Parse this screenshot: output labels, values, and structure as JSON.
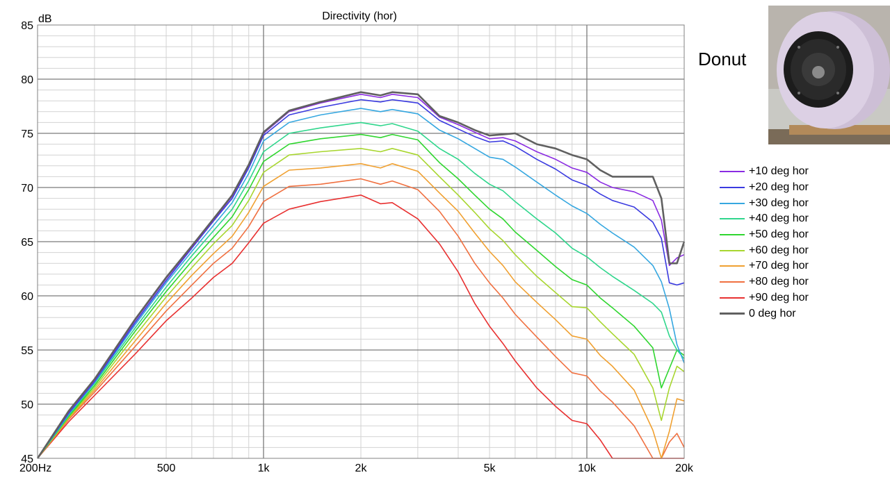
{
  "side_label": "Donut",
  "photo": {
    "icon": "speaker-photo-icon",
    "colors": {
      "body": "#d8cbe0",
      "driver": "#1b1b1b",
      "stand": "#b28a5a",
      "background": "#c9c9c4"
    }
  },
  "chart_data": {
    "type": "line",
    "title": "Directivity (hor)",
    "ylabel": "dB",
    "xlabel": "",
    "xscale": "log",
    "xlim": [
      200,
      20000
    ],
    "ylim": [
      45,
      85
    ],
    "grid": true,
    "legend_position": "right",
    "x_ticks": [
      {
        "value": 200,
        "label": "200Hz"
      },
      {
        "value": 500,
        "label": "500"
      },
      {
        "value": 1000,
        "label": "1k"
      },
      {
        "value": 2000,
        "label": "2k"
      },
      {
        "value": 5000,
        "label": "5k"
      },
      {
        "value": 10000,
        "label": "10k"
      },
      {
        "value": 20000,
        "label": "20k"
      }
    ],
    "y_ticks": [
      {
        "value": 85,
        "label": "85"
      },
      {
        "value": 80,
        "label": "80"
      },
      {
        "value": 75,
        "label": "75"
      },
      {
        "value": 70,
        "label": "70"
      },
      {
        "value": 65,
        "label": "65"
      },
      {
        "value": 60,
        "label": "60"
      },
      {
        "value": 55,
        "label": "55"
      },
      {
        "value": 50,
        "label": "50"
      },
      {
        "value": 45,
        "label": "45"
      }
    ],
    "x": [
      200,
      250,
      300,
      400,
      500,
      600,
      700,
      800,
      900,
      1000,
      1200,
      1500,
      2000,
      2300,
      2500,
      3000,
      3500,
      4000,
      4500,
      5000,
      5500,
      6000,
      7000,
      8000,
      9000,
      10000,
      11000,
      12000,
      14000,
      16000,
      17000,
      18000,
      19000,
      20000
    ],
    "series": [
      {
        "name": "+10 deg hor",
        "color": "#8a2be2",
        "values": [
          45,
          49.3,
          52.2,
          57.7,
          61.6,
          64.5,
          67,
          69.2,
          72,
          75,
          77,
          77.8,
          78.6,
          78.3,
          78.6,
          78.3,
          76.5,
          75.8,
          75.1,
          74.5,
          74.6,
          74.3,
          73.3,
          72.6,
          71.8,
          71.4,
          70.5,
          70,
          69.6,
          68.8,
          67,
          62.8,
          63.5,
          63.8
        ]
      },
      {
        "name": "+20 deg hor",
        "color": "#3a3ae0",
        "values": [
          45,
          49.2,
          52.1,
          57.5,
          61.4,
          64.4,
          66.9,
          69,
          71.8,
          74.8,
          76.7,
          77.4,
          78.1,
          77.9,
          78.1,
          77.8,
          76.2,
          75.4,
          74.7,
          74.2,
          74.3,
          73.8,
          72.6,
          71.7,
          70.7,
          70.2,
          69.4,
          68.8,
          68.2,
          66.8,
          65.3,
          61.2,
          61,
          61.2
        ]
      },
      {
        "name": "+30 deg hor",
        "color": "#35a7e0",
        "values": [
          45,
          49.1,
          52,
          57.3,
          61.2,
          64.1,
          66.5,
          68.6,
          71.3,
          74.3,
          76,
          76.7,
          77.3,
          77,
          77.2,
          76.8,
          75.3,
          74.5,
          73.6,
          72.8,
          72.6,
          71.9,
          70.5,
          69.3,
          68.3,
          67.6,
          66.6,
          65.8,
          64.5,
          62.8,
          61.3,
          58.8,
          55.5,
          53.8
        ]
      },
      {
        "name": "+40 deg hor",
        "color": "#2fd68c",
        "values": [
          45,
          49,
          51.9,
          57,
          60.8,
          63.7,
          66,
          68,
          70.6,
          73.3,
          75,
          75.5,
          76,
          75.7,
          75.9,
          75.2,
          73.6,
          72.6,
          71.3,
          70.3,
          69.7,
          68.7,
          67.1,
          65.8,
          64.4,
          63.6,
          62.6,
          61.8,
          60.5,
          59.3,
          58.5,
          56.3,
          55,
          54.2
        ]
      },
      {
        "name": "+50 deg hor",
        "color": "#2fd62f",
        "values": [
          45,
          48.9,
          51.7,
          56.7,
          60.4,
          63.2,
          65.4,
          67.3,
          69.8,
          72.4,
          74,
          74.5,
          74.9,
          74.6,
          74.9,
          74.4,
          72.3,
          70.8,
          69.3,
          68,
          67.1,
          65.9,
          64.2,
          62.7,
          61.5,
          61,
          59.8,
          58.9,
          57.2,
          55.2,
          51.5,
          53.3,
          55,
          54.5
        ]
      },
      {
        "name": "+60 deg hor",
        "color": "#a8d62f",
        "values": [
          45,
          48.8,
          51.5,
          56.3,
          59.9,
          62.6,
          64.8,
          66.5,
          68.8,
          71.4,
          73,
          73.3,
          73.6,
          73.3,
          73.6,
          73,
          71,
          69.3,
          67.7,
          66.2,
          65.1,
          63.8,
          61.8,
          60.3,
          59,
          58.9,
          57.6,
          56.5,
          54.6,
          51.5,
          48.5,
          51.5,
          53.5,
          53
        ]
      },
      {
        "name": "+70 deg hor",
        "color": "#f0a030",
        "values": [
          45,
          48.7,
          51.3,
          55.8,
          59.3,
          61.9,
          63.9,
          65.5,
          67.7,
          70.1,
          71.6,
          71.8,
          72.2,
          71.8,
          72.2,
          71.5,
          69.5,
          67.8,
          65.8,
          64.1,
          62.8,
          61.3,
          59.4,
          57.8,
          56.3,
          56,
          54.5,
          53.5,
          51.3,
          47.6,
          45,
          47.5,
          50.5,
          50.3
        ]
      },
      {
        "name": "+80 deg hor",
        "color": "#f07040",
        "values": [
          45,
          48.6,
          51.1,
          55.3,
          58.6,
          61,
          63,
          64.4,
          66.4,
          68.7,
          70.1,
          70.3,
          70.8,
          70.3,
          70.6,
          69.8,
          67.8,
          65.5,
          63,
          61.2,
          59.8,
          58.3,
          56.2,
          54.4,
          52.9,
          52.6,
          51.2,
          50.2,
          48,
          45,
          45,
          46.5,
          47.3,
          46
        ]
      },
      {
        "name": "+90 deg hor",
        "color": "#e83030",
        "values": [
          45,
          48.4,
          50.8,
          54.6,
          57.7,
          59.8,
          61.7,
          63,
          64.9,
          66.7,
          68,
          68.7,
          69.3,
          68.5,
          68.6,
          67.1,
          64.8,
          62.2,
          59.3,
          57.2,
          55.6,
          54,
          51.5,
          49.8,
          48.5,
          48.2,
          46.7,
          45,
          45,
          45,
          45,
          45,
          45,
          45
        ]
      },
      {
        "name": "0 deg hor",
        "color": "#606060",
        "values": [
          45,
          49.4,
          52.3,
          57.8,
          61.7,
          64.6,
          67.1,
          69.3,
          72.1,
          75.1,
          77.1,
          77.9,
          78.8,
          78.5,
          78.8,
          78.6,
          76.6,
          76,
          75.3,
          74.8,
          74.9,
          75,
          74,
          73.6,
          73,
          72.6,
          71.6,
          71,
          71,
          71,
          69,
          63,
          63,
          65
        ]
      }
    ]
  }
}
